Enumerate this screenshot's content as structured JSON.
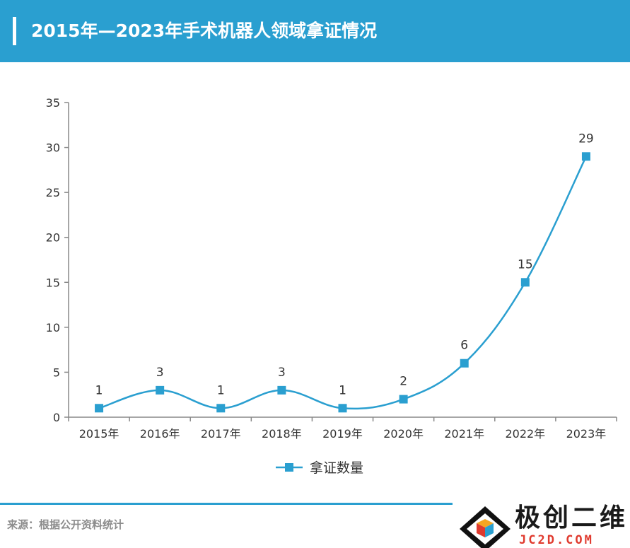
{
  "header": {
    "title": "2015年—2023年手术机器人领域拿证情况"
  },
  "chart_data": {
    "type": "line",
    "categories": [
      "2015年",
      "2016年",
      "2017年",
      "2018年",
      "2019年",
      "2020年",
      "2021年",
      "2022年",
      "2023年"
    ],
    "series": [
      {
        "name": "拿证数量",
        "values": [
          1,
          3,
          1,
          3,
          1,
          2,
          6,
          15,
          29
        ]
      }
    ],
    "title": "2015年—2023年手术机器人领域拿证情况",
    "xlabel": "",
    "ylabel": "",
    "ylim": [
      0,
      35
    ],
    "yticks": [
      0,
      5,
      10,
      15,
      20,
      25,
      30,
      35
    ],
    "grid": false,
    "legend_position": "bottom-center",
    "data_labels": true,
    "color": "#2a9fd0"
  },
  "footer": {
    "source": "来源：根据公开资料统计"
  },
  "logo": {
    "name": "极创二维",
    "url_text": "JC2D.COM"
  }
}
